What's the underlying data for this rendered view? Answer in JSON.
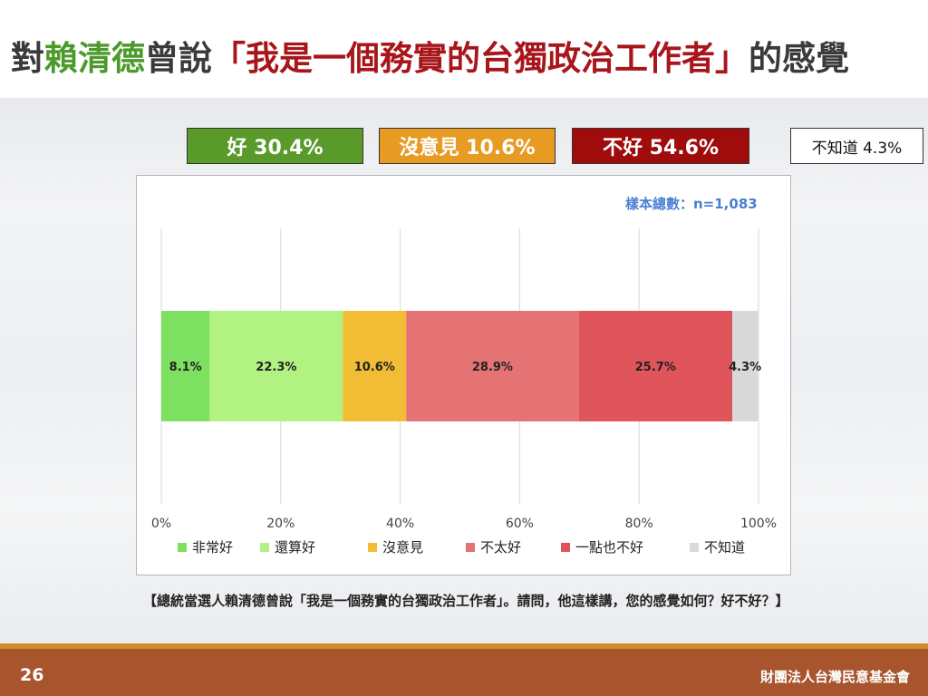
{
  "title": {
    "part1": "對",
    "part2": "賴清德",
    "part3": "曾說",
    "part4": "「我是一個務實的台獨政治工作者」",
    "part5": "的感覺"
  },
  "summary": {
    "good": "好 30.4%",
    "neutral": "沒意見 10.6%",
    "bad": "不好 54.6%",
    "unknown": "不知道 4.3%"
  },
  "colors": {
    "good_box": "#5a9a2a",
    "neutral_box": "#e79b23",
    "bad_box": "#a00c0c",
    "unknown_box": "#ffffff"
  },
  "sample_text": "樣本總數：n=1,083",
  "chart_data": {
    "type": "bar",
    "orientation": "horizontal",
    "stacked": true,
    "percent_scale": true,
    "xlim": [
      0,
      100
    ],
    "xticks": [
      "0%",
      "20%",
      "40%",
      "60%",
      "80%",
      "100%"
    ],
    "grid": true,
    "legend_position": "bottom",
    "series": [
      {
        "name": "非常好",
        "value": 8.1,
        "label": "8.1%",
        "color": "#7ee060"
      },
      {
        "name": "還算好",
        "value": 22.3,
        "label": "22.3%",
        "color": "#b2f282"
      },
      {
        "name": "沒意見",
        "value": 10.6,
        "label": "10.6%",
        "color": "#f2bd34"
      },
      {
        "name": "不太好",
        "value": 28.9,
        "label": "28.9%",
        "color": "#e57373"
      },
      {
        "name": "一點也不好",
        "value": 25.7,
        "label": "25.7%",
        "color": "#e0555c"
      },
      {
        "name": "不知道",
        "value": 4.3,
        "label": "4.3%",
        "color": "#d9d9d9"
      }
    ]
  },
  "question": "【總統當選人賴清德曾說「我是一個務實的台獨政治工作者」。請問，他這樣講，您的感覺如何？好不好？】",
  "footer": {
    "page": "26",
    "org": "財團法人台灣民意基金會"
  }
}
